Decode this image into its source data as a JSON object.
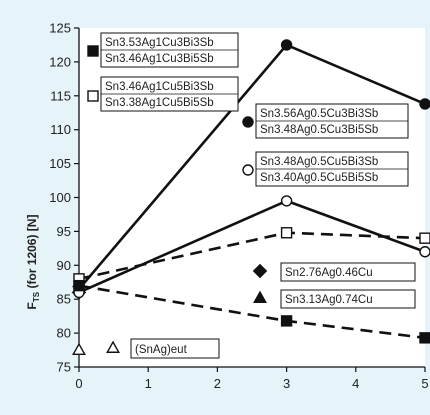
{
  "chart_data": {
    "type": "line",
    "title": "",
    "xlabel": "",
    "ylabel": "F",
    "ylabel_subscript": "TS",
    "ylabel_tail": " (for 1206)  [N]",
    "xlim": [
      0,
      5
    ],
    "ylim": [
      75,
      125
    ],
    "x_ticks": [
      "0",
      "1",
      "2",
      "3",
      "4",
      "5"
    ],
    "y_ticks": [
      "75",
      "80",
      "85",
      "90",
      "95",
      "100",
      "105",
      "110",
      "115",
      "120",
      "125"
    ],
    "grid": false,
    "series": [
      {
        "name": "Sn2.76Ag0.46Cu",
        "x": [
          0
        ],
        "y": [
          86.0
        ],
        "marker": "diamond",
        "filled": true,
        "line": "none",
        "color": "#111111"
      },
      {
        "name": "Sn3.13Ag0.74Cu",
        "x": [
          0
        ],
        "y": [
          87.5
        ],
        "marker": "triangle",
        "filled": true,
        "line": "none",
        "color": "#111111"
      },
      {
        "name": "(SnAg)eut",
        "x": [
          0
        ],
        "y": [
          77.5
        ],
        "marker": "triangle",
        "filled": false,
        "line": "none",
        "color": "#111111"
      },
      {
        "name": "Sn3.53Ag1Cu3Bi3Sb",
        "x": [],
        "y": [],
        "marker": "square",
        "filled": true,
        "line": "none",
        "color": "#111111"
      },
      {
        "name": "Sn3.46Ag1Cu3Bi5Sb",
        "x": [],
        "y": [],
        "marker": "square",
        "filled": true,
        "line": "none",
        "color": "#111111"
      },
      {
        "name": "Sn3.46Ag1Cu5Bi3Sb",
        "x": [],
        "y": [],
        "marker": "square",
        "filled": false,
        "line": "none",
        "color": "#111111"
      },
      {
        "name": "Sn3.38Ag1Cu5Bi5Sb",
        "x": [],
        "y": [],
        "marker": "square",
        "filled": false,
        "line": "none",
        "color": "#111111"
      },
      {
        "name": "Sn3.56Ag0.5Cu3Bi3Sb",
        "x": [],
        "y": [],
        "marker": "circle",
        "filled": true,
        "line": "none",
        "color": "#111111"
      },
      {
        "name": "Sn3.48Ag0.5Cu3Bi5Sb",
        "x": [],
        "y": [],
        "marker": "circle",
        "filled": true,
        "line": "none",
        "color": "#111111"
      },
      {
        "name": "Sn3.48Ag0.5Cu5Bi3Sb",
        "x": [],
        "y": [],
        "marker": "circle",
        "filled": false,
        "line": "none",
        "color": "#111111"
      },
      {
        "name": "Sn3.40Ag0.5Cu5Bi5Sb",
        "x": [],
        "y": [],
        "marker": "circle",
        "filled": false,
        "line": "none",
        "color": "#111111"
      },
      {
        "name": "",
        "x": [
          0,
          3,
          5
        ],
        "y": [
          86.5,
          122.5,
          113.8
        ],
        "marker": "circle",
        "filled": true,
        "line": "solid",
        "color": "#111111"
      },
      {
        "name": "",
        "x": [
          0,
          3,
          5
        ],
        "y": [
          86.0,
          99.5,
          92.0
        ],
        "marker": "circle",
        "filled": false,
        "line": "solid",
        "color": "#111111"
      },
      {
        "name": "",
        "x": [
          0,
          3,
          5
        ],
        "y": [
          88.0,
          94.8,
          94.0
        ],
        "marker": "square",
        "filled": false,
        "line": "dashed",
        "color": "#111111"
      },
      {
        "name": "",
        "x": [
          0,
          3,
          5
        ],
        "y": [
          87.0,
          81.8,
          79.3
        ],
        "marker": "square",
        "filled": true,
        "line": "dashed",
        "color": "#111111"
      }
    ],
    "legend": [
      {
        "marker": "square",
        "filled": true,
        "lines": [
          "Sn3.53Ag1Cu3Bi3Sb",
          "Sn3.46Ag1Cu3Bi5Sb"
        ]
      },
      {
        "marker": "square",
        "filled": false,
        "lines": [
          "Sn3.46Ag1Cu5Bi3Sb",
          "Sn3.38Ag1Cu5Bi5Sb"
        ]
      },
      {
        "marker": "circle",
        "filled": true,
        "lines": [
          "Sn3.56Ag0.5Cu3Bi3Sb",
          "Sn3.48Ag0.5Cu3Bi5Sb"
        ]
      },
      {
        "marker": "circle",
        "filled": false,
        "lines": [
          "Sn3.48Ag0.5Cu5Bi3Sb",
          "Sn3.40Ag0.5Cu5Bi5Sb"
        ]
      },
      {
        "marker": "diamond",
        "filled": true,
        "lines": [
          "Sn2.76Ag0.46Cu"
        ]
      },
      {
        "marker": "triangle",
        "filled": true,
        "lines": [
          "Sn3.13Ag0.74Cu"
        ]
      },
      {
        "marker": "triangle",
        "filled": false,
        "lines": [
          "(SnAg)eut"
        ]
      }
    ]
  }
}
